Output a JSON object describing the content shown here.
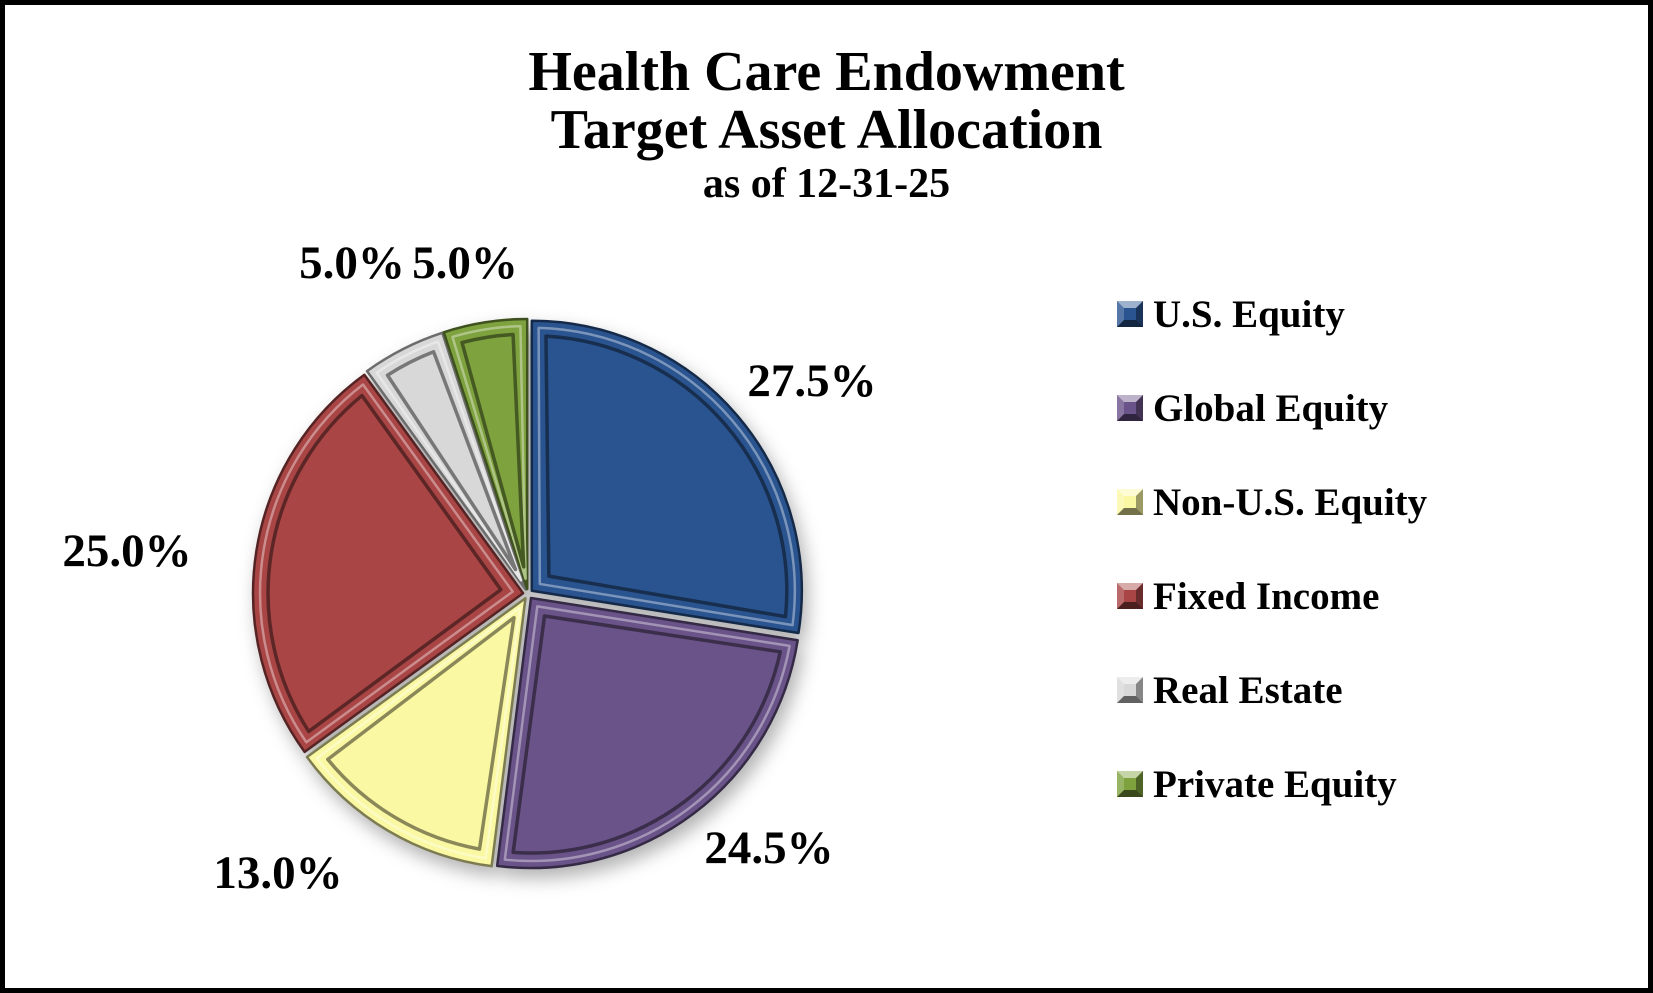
{
  "title": {
    "line1": "Health Care Endowment",
    "line2": "Target Asset Allocation",
    "line3": "as of 12-31-25"
  },
  "chart_data": {
    "type": "pie",
    "title": "Health Care Endowment Target Asset Allocation as of 12-31-25",
    "start_angle": "top",
    "direction": "clockwise",
    "legend_position": "right",
    "style": "3d-beveled, slightly exploded slices, bold serif labels",
    "slices": [
      {
        "label": "U.S. Equity",
        "value": 27.5,
        "display": "27.5%",
        "color": "#2A5490"
      },
      {
        "label": "Global Equity",
        "value": 24.5,
        "display": "24.5%",
        "color": "#6A5389"
      },
      {
        "label": "Non-U.S. Equity",
        "value": 13.0,
        "display": "13.0%",
        "color": "#FAF8A2"
      },
      {
        "label": "Fixed Income",
        "value": 25.0,
        "display": "25.0%",
        "color": "#A94545"
      },
      {
        "label": "Real Estate",
        "value": 5.0,
        "display": "5.0%",
        "color": "#D8D8D8"
      },
      {
        "label": "Private Equity",
        "value": 5.0,
        "display": "5.0%",
        "color": "#7EA23E"
      }
    ]
  }
}
